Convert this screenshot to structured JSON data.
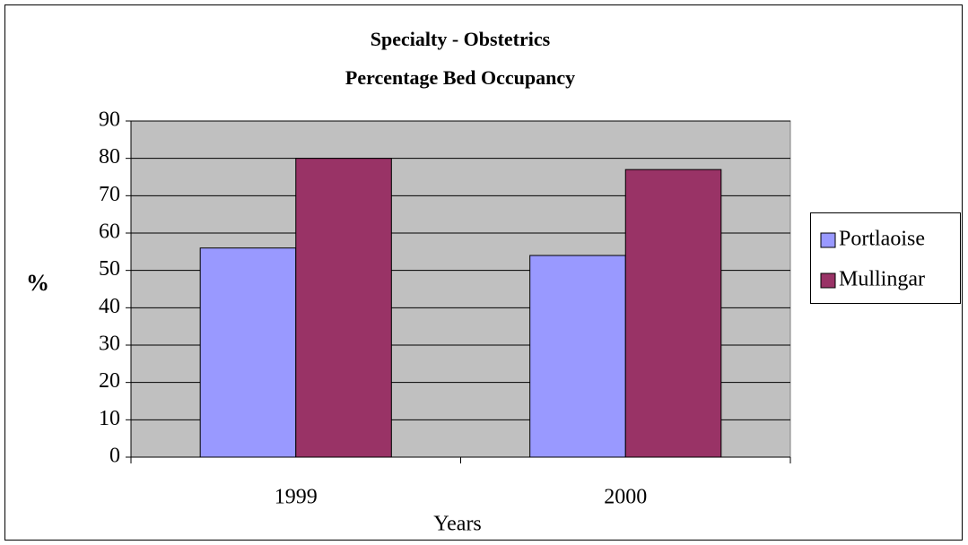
{
  "chart_data": {
    "type": "bar",
    "title": "Specialty - Obstetrics",
    "subtitle": "Percentage Bed Occupancy",
    "y_label": "%",
    "x_label": "Years",
    "categories": [
      "1999",
      "2000"
    ],
    "series": [
      {
        "name": "Portlaoise",
        "color": "#9999ff",
        "values": [
          56,
          54
        ]
      },
      {
        "name": "Mullingar",
        "color": "#993366",
        "values": [
          80,
          77
        ]
      }
    ],
    "ylim": [
      0,
      90
    ],
    "yticks": [
      0,
      10,
      20,
      30,
      40,
      50,
      60,
      70,
      80,
      90
    ],
    "grid": true,
    "legend": "right",
    "plot_background": "#c0c0c0"
  }
}
